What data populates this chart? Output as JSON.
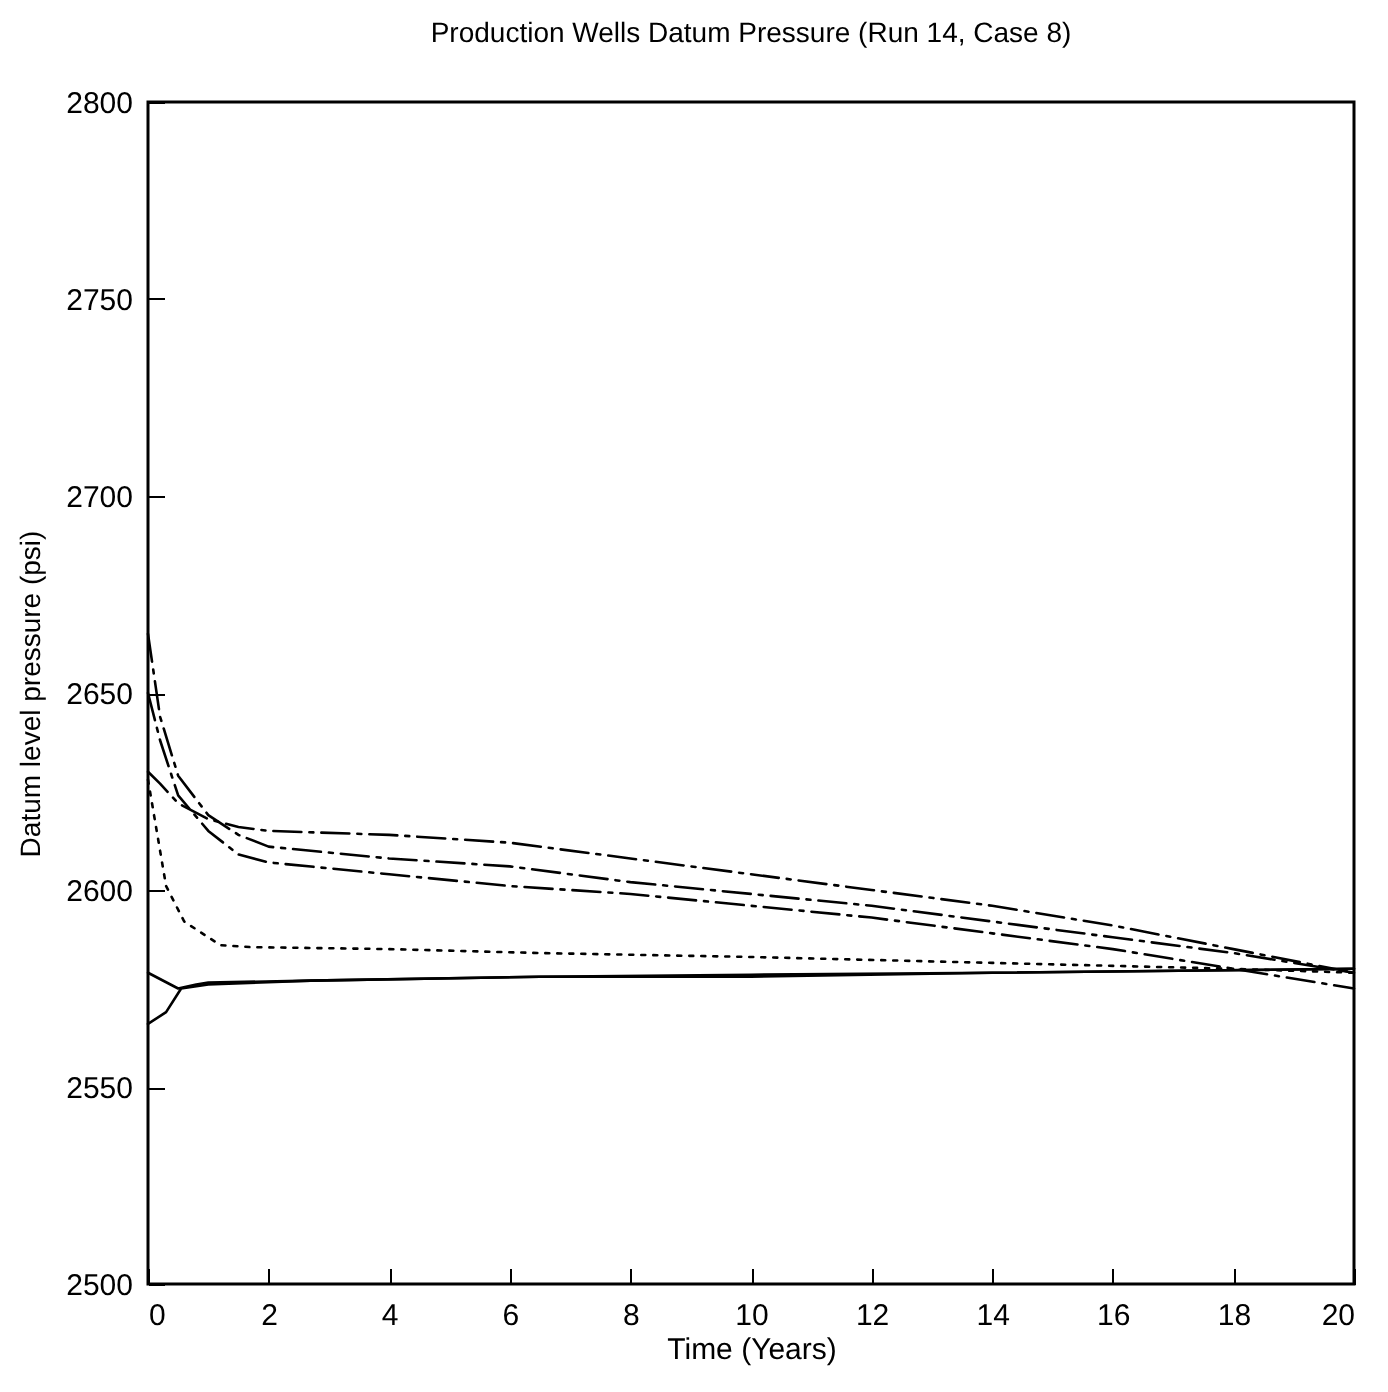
{
  "chart_data": {
    "type": "line",
    "title": "Production Wells Datum Pressure (Run 14, Case 8)",
    "xlabel": "Time (Years)",
    "ylabel": "Datum level pressure (psi)",
    "xlim": [
      0,
      20
    ],
    "xticks": [
      0,
      2,
      4,
      6,
      8,
      10,
      12,
      14,
      16,
      18,
      20
    ],
    "ylim": [
      2500,
      2800
    ],
    "yticks": [
      2500,
      2550,
      2600,
      2650,
      2700,
      2750,
      2800
    ],
    "grid": false,
    "series": [
      {
        "color": "#000000",
        "line_style": "dashed",
        "x": [
          0,
          0.2,
          0.5,
          1,
          1.5,
          2,
          4,
          6,
          8,
          10,
          12,
          14,
          16,
          18,
          20
        ],
        "values": [
          2630,
          2627,
          2622,
          2618,
          2616,
          2615,
          2614,
          2612,
          2608,
          2604,
          2600,
          2596,
          2591,
          2585,
          2579
        ]
      },
      {
        "color": "#000000",
        "line_style": "dashed",
        "x": [
          0,
          0.2,
          0.5,
          1,
          1.5,
          2,
          4,
          6,
          8,
          10,
          12,
          14,
          16,
          18,
          20
        ],
        "values": [
          2665,
          2644,
          2629,
          2619,
          2614,
          2611,
          2608,
          2606,
          2602,
          2599,
          2596,
          2592,
          2588,
          2584,
          2579
        ]
      },
      {
        "color": "#000000",
        "line_style": "dashed",
        "x": [
          0,
          0.2,
          0.5,
          1,
          1.5,
          2,
          4,
          6,
          8,
          10,
          12,
          14,
          16,
          18,
          20
        ],
        "values": [
          2650,
          2638,
          2624,
          2615,
          2609,
          2607,
          2604,
          2601,
          2599,
          2596,
          2593,
          2589,
          2585,
          2580,
          2575
        ]
      },
      {
        "color": "#000000",
        "line_style": "dotted",
        "x": [
          0,
          0.3,
          0.6,
          1,
          1.2,
          1.7,
          4,
          6.5,
          10,
          14,
          18,
          20
        ],
        "values": [
          2628,
          2601,
          2592,
          2588,
          2586,
          2585.5,
          2585,
          2584,
          2583,
          2581.5,
          2580,
          2579
        ]
      },
      {
        "color": "#000000",
        "line_style": "solid",
        "x": [
          0,
          0.5,
          0.8,
          1,
          2.7,
          6.5,
          10,
          14,
          20
        ],
        "values": [
          2579,
          2575,
          2576,
          2576.5,
          2577,
          2578,
          2578,
          2579,
          2580
        ]
      },
      {
        "color": "#000000",
        "line_style": "solid",
        "x": [
          0,
          0.3,
          0.55,
          1,
          2.7,
          6.5,
          10,
          14,
          20
        ],
        "values": [
          2566,
          2569,
          2575,
          2576,
          2577,
          2578,
          2578.5,
          2579,
          2580
        ]
      }
    ]
  }
}
